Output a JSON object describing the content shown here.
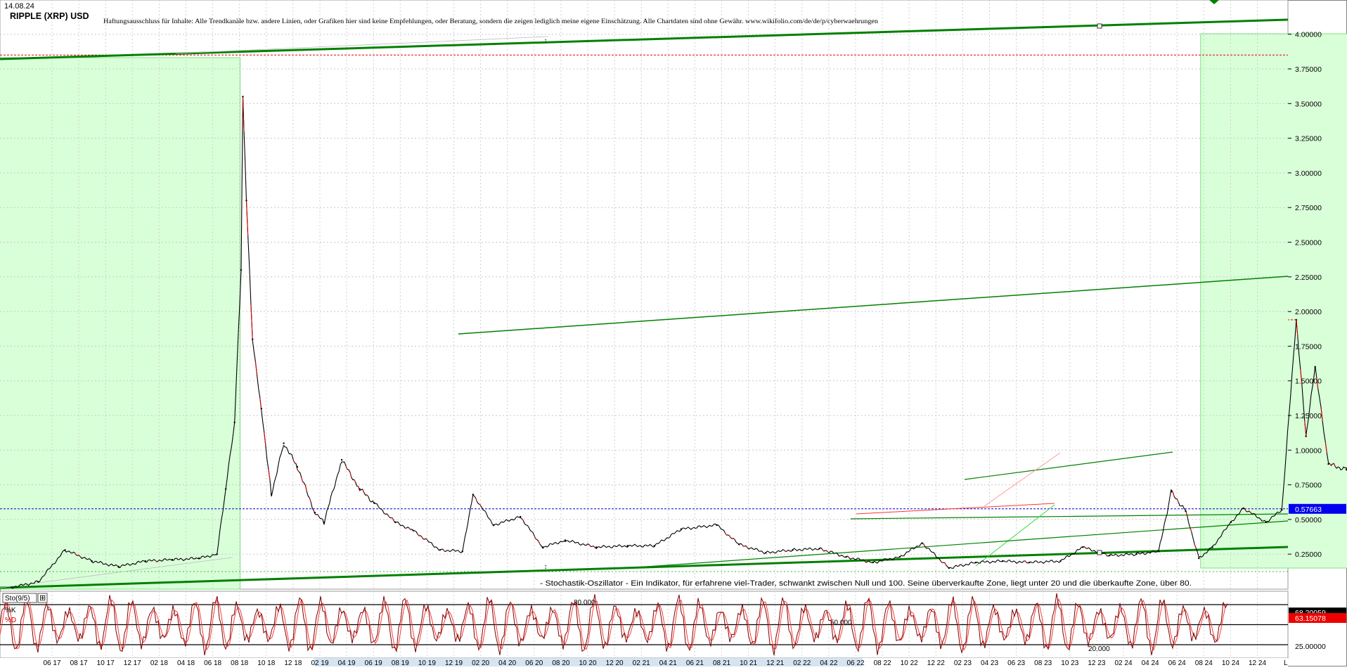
{
  "date_label": "14.08.24",
  "title": "RIPPLE (XRP) USD",
  "disclaimer": "Haftungsausschluss für Inhalte: Alle Trendkanäle bzw. andere Linien, oder Grafiken hier sind keine Empfehlungen, oder Beratung, sondern die zeigen lediglich meine eigene Einschätzung. Alle Chartdaten sind ohne Gewähr. www.wikifolio.com/de/de/p/cyberwaehrungen",
  "stochastic_note": "- Stochastik-Oszillator - Ein Indikator, für erfahrene viel-Trader, schwankt zwischen Null und 100. Seine überverkaufte Zone, liegt unter 20 und die überkaufte Zone, über 80.",
  "colors": {
    "price": "#000000",
    "trend_green": "#008000",
    "highlight_fill": "#d9ffd9",
    "highlight_border": "#7fe07f",
    "current_line": "#0000cc",
    "resistance_line": "#e00000",
    "k_line": "#7a0000",
    "d_line": "#ff3b3b"
  },
  "chart_data": [
    {
      "type": "line",
      "title": "RIPPLE (XRP) USD",
      "y_scale": "linear",
      "ylim": [
        0.0,
        4.2
      ],
      "y_ticks": [
        "4.00000",
        "3.75000",
        "3.50000",
        "3.25000",
        "3.00000",
        "2.75000",
        "2.50000",
        "2.25000",
        "2.00000",
        "1.75000",
        "1.50000",
        "1.25000",
        "1.00000",
        "0.75000",
        "0.50000",
        "0.25000"
      ],
      "x_ticks": [
        "06 17",
        "08 17",
        "10 17",
        "12 17",
        "02 18",
        "04 18",
        "06 18",
        "08 18",
        "10 18",
        "12 18",
        "02 19",
        "04 19",
        "06 19",
        "08 19",
        "10 19",
        "12 19",
        "02 20",
        "04 20",
        "06 20",
        "08 20",
        "10 20",
        "12 20",
        "02 21",
        "04 21",
        "06 21",
        "08 21",
        "10 21",
        "12 21",
        "02 22",
        "04 22",
        "06 22",
        "08 22",
        "10 22",
        "12 22",
        "02 23",
        "04 23",
        "06 23",
        "08 23",
        "10 23",
        "12 23",
        "02 24",
        "04 24",
        "06 24",
        "08 24",
        "10 24",
        "12 24"
      ],
      "current_value_label": "0.57663",
      "resistance_levels": [
        3.85,
        1.94
      ],
      "grid": true,
      "series": [
        {
          "points": [
            [
              "2017-04",
              0.01
            ],
            [
              "2017-05",
              0.05
            ],
            [
              "2017-06",
              0.28
            ],
            [
              "2017-07",
              0.2
            ],
            [
              "2017-08",
              0.16
            ],
            [
              "2017-09",
              0.2
            ],
            [
              "2017-10",
              0.21
            ],
            [
              "2017-11",
              0.22
            ],
            [
              "2017-12-05",
              0.25
            ],
            [
              "2017-12-15",
              0.72
            ],
            [
              "2017-12-25",
              1.2
            ],
            [
              "2018-01-02",
              2.3
            ],
            [
              "2018-01-04",
              3.55
            ],
            [
              "2018-01-08",
              2.8
            ],
            [
              "2018-01-15",
              1.8
            ],
            [
              "2018-01-25",
              1.3
            ],
            [
              "2018-02-06",
              0.68
            ],
            [
              "2018-02-20",
              1.05
            ],
            [
              "2018-03-05",
              0.88
            ],
            [
              "2018-03-25",
              0.55
            ],
            [
              "2018-04-05",
              0.48
            ],
            [
              "2018-04-25",
              0.93
            ],
            [
              "2018-05-15",
              0.72
            ],
            [
              "2018-06-01",
              0.62
            ],
            [
              "2018-06-25",
              0.48
            ],
            [
              "2018-07-15",
              0.42
            ],
            [
              "2018-08-15",
              0.28
            ],
            [
              "2018-09-10",
              0.27
            ],
            [
              "2018-09-22",
              0.68
            ],
            [
              "2018-10-15",
              0.46
            ],
            [
              "2018-11-15",
              0.52
            ],
            [
              "2018-12-10",
              0.3
            ],
            [
              "2019-01-05",
              0.35
            ],
            [
              "2019-02-10",
              0.3
            ],
            [
              "2019-03-15",
              0.31
            ],
            [
              "2019-04-15",
              0.31
            ],
            [
              "2019-05-15",
              0.43
            ],
            [
              "2019-06-25",
              0.46
            ],
            [
              "2019-07-20",
              0.32
            ],
            [
              "2019-08-20",
              0.26
            ],
            [
              "2019-09-20",
              0.28
            ],
            [
              "2019-10-20",
              0.29
            ],
            [
              "2019-11-20",
              0.23
            ],
            [
              "2019-12-20",
              0.19
            ],
            [
              "2020-01-20",
              0.23
            ],
            [
              "2020-02-15",
              0.33
            ],
            [
              "2020-03-15",
              0.15
            ],
            [
              "2020-04-15",
              0.19
            ],
            [
              "2020-05-15",
              0.2
            ],
            [
              "2020-06-15",
              0.19
            ],
            [
              "2020-07-20",
              0.2
            ],
            [
              "2020-08-15",
              0.3
            ],
            [
              "2020-09-15",
              0.24
            ],
            [
              "2020-10-15",
              0.25
            ],
            [
              "2020-11-10",
              0.27
            ],
            [
              "2020-11-24",
              0.7
            ],
            [
              "2020-12-10",
              0.56
            ],
            [
              "2020-12-25",
              0.22
            ],
            [
              "2021-01-10",
              0.3
            ],
            [
              "2021-01-31",
              0.48
            ],
            [
              "2021-02-15",
              0.58
            ],
            [
              "2021-03-10",
              0.48
            ],
            [
              "2021-03-28",
              0.57
            ],
            [
              "2021-04-14",
              1.94
            ],
            [
              "2021-04-25",
              1.1
            ],
            [
              "2021-05-05",
              1.6
            ],
            [
              "2021-05-20",
              0.9
            ],
            [
              "2021-06-10",
              0.86
            ],
            [
              "2021-06-25",
              0.6
            ],
            [
              "2021-07-20",
              0.55
            ],
            [
              "2021-08-10",
              0.82
            ],
            [
              "2021-09-06",
              1.38
            ],
            [
              "2021-09-25",
              0.9
            ],
            [
              "2021-10-20",
              1.1
            ],
            [
              "2021-11-10",
              1.28
            ],
            [
              "2021-11-25",
              1.02
            ],
            [
              "2021-12-15",
              0.85
            ],
            [
              "2022-01-05",
              0.78
            ],
            [
              "2022-01-25",
              0.6
            ],
            [
              "2022-02-15",
              0.85
            ],
            [
              "2022-03-15",
              0.78
            ],
            [
              "2022-04-05",
              0.82
            ],
            [
              "2022-05-05",
              0.62
            ],
            [
              "2022-05-15",
              0.4
            ],
            [
              "2022-06-18",
              0.3
            ],
            [
              "2022-07-15",
              0.34
            ],
            [
              "2022-08-15",
              0.35
            ],
            [
              "2022-09-23",
              0.52
            ],
            [
              "2022-10-20",
              0.46
            ],
            [
              "2022-11-15",
              0.38
            ],
            [
              "2022-12-20",
              0.34
            ],
            [
              "2023-01-20",
              0.4
            ],
            [
              "2023-02-20",
              0.39
            ],
            [
              "2023-03-29",
              0.55
            ],
            [
              "2023-04-20",
              0.46
            ],
            [
              "2023-05-20",
              0.46
            ],
            [
              "2023-06-20",
              0.49
            ],
            [
              "2023-07-13",
              0.82
            ],
            [
              "2023-07-25",
              0.7
            ],
            [
              "2023-08-17",
              0.5
            ],
            [
              "2023-09-15",
              0.49
            ],
            [
              "2023-10-15",
              0.53
            ],
            [
              "2023-11-10",
              0.7
            ],
            [
              "2023-12-15",
              0.62
            ],
            [
              "2024-01-20",
              0.54
            ],
            [
              "2024-02-20",
              0.55
            ],
            [
              "2024-03-11",
              0.72
            ],
            [
              "2024-04-13",
              0.52
            ],
            [
              "2024-05-15",
              0.52
            ],
            [
              "2024-06-15",
              0.49
            ],
            [
              "2024-07-05",
              0.41
            ],
            [
              "2024-07-20",
              0.61
            ],
            [
              "2024-08-05",
              0.49
            ],
            [
              "2024-08-14",
              0.57663
            ]
          ]
        }
      ]
    },
    {
      "type": "line",
      "title": "Sto(9/5)",
      "ylim": [
        0,
        100
      ],
      "level_labels": [
        "80.000",
        "50.000",
        "20.000"
      ],
      "legend": [
        "%K",
        "%D"
      ],
      "values_k_label": "68.20059",
      "values_d_label": "63.15078",
      "axis_labels": [
        "25.00000"
      ],
      "series": [
        {
          "name": "%K",
          "last_value": 68.20059
        },
        {
          "name": "%D",
          "last_value": 63.15078
        }
      ]
    }
  ]
}
